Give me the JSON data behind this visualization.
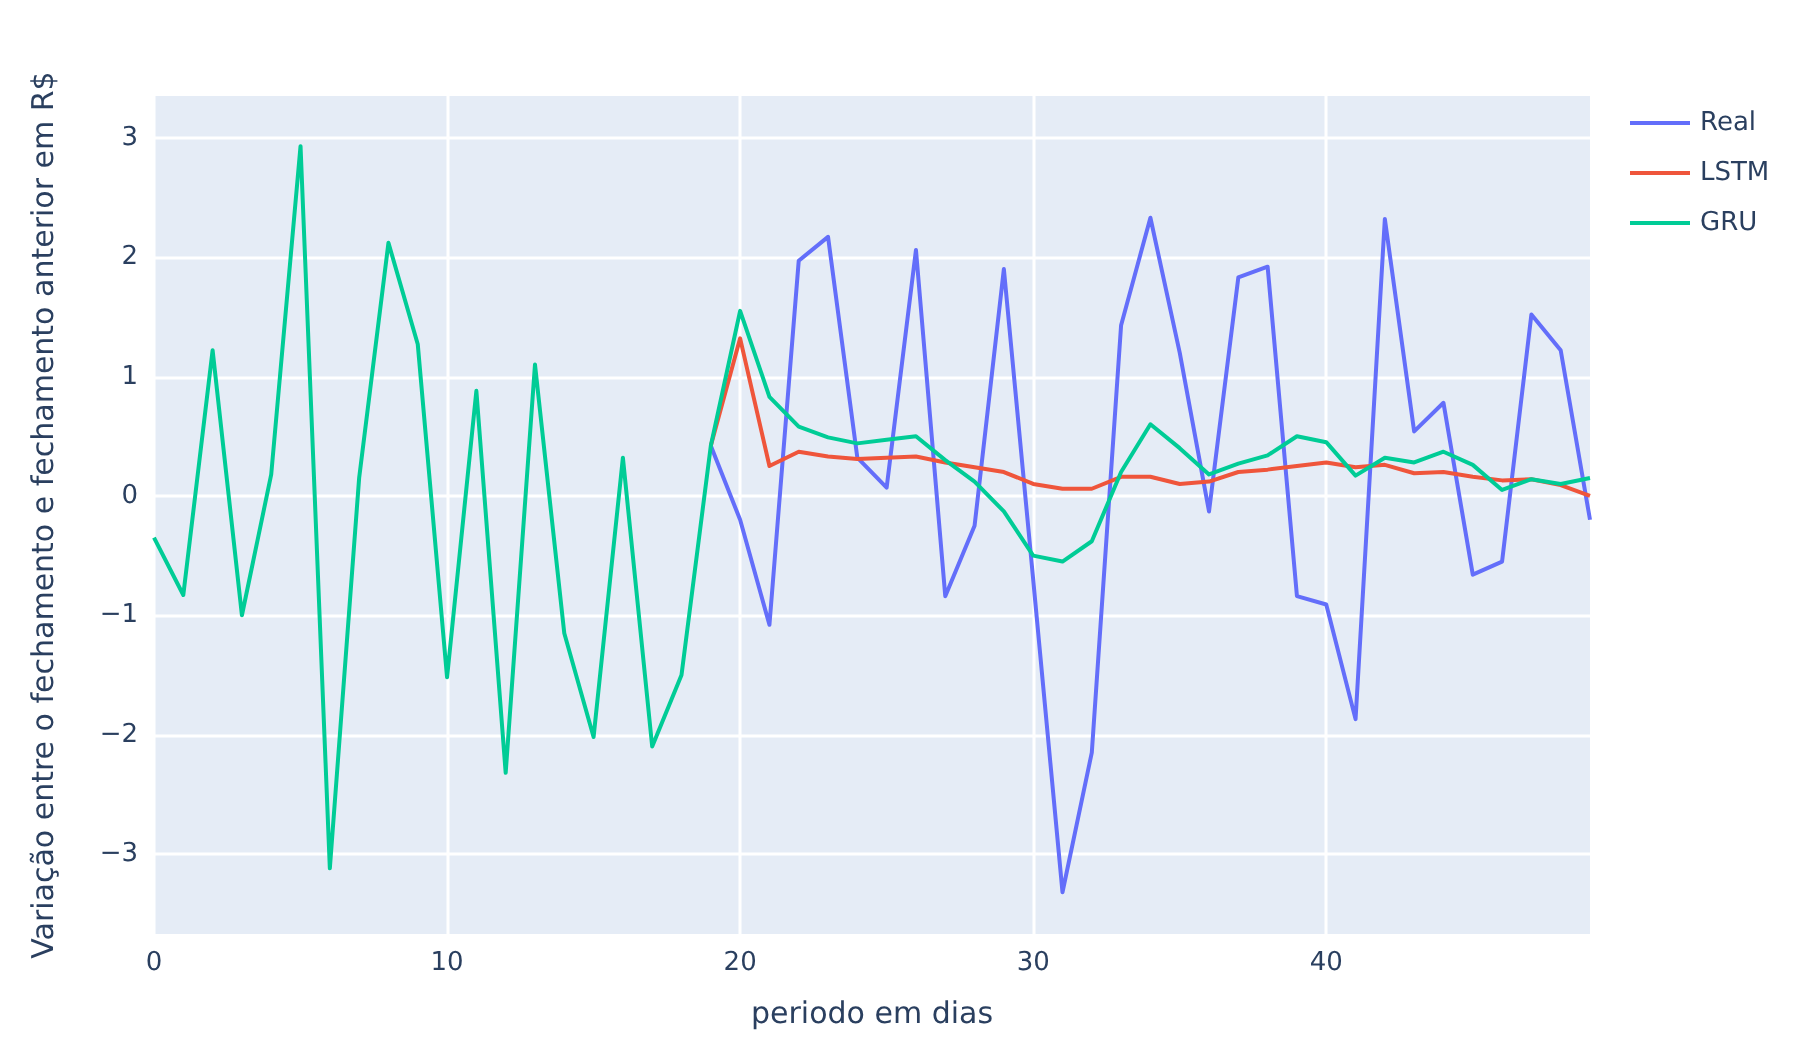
{
  "chart_data": {
    "type": "line",
    "xlabel": "periodo em dias",
    "ylabel": "Variação entre o fechamento e fechamento anterior em R$",
    "x": [
      0,
      1,
      2,
      3,
      4,
      5,
      6,
      7,
      8,
      9,
      10,
      11,
      12,
      13,
      14,
      15,
      16,
      17,
      18,
      19,
      20,
      21,
      22,
      23,
      24,
      25,
      26,
      27,
      28,
      29,
      30,
      31,
      32,
      33,
      34,
      35,
      36,
      37,
      38,
      39,
      40,
      41,
      42,
      43,
      44,
      45,
      46,
      47,
      48,
      49
    ],
    "series": [
      {
        "name": "Real",
        "color": "#636efa",
        "values": [
          null,
          null,
          null,
          null,
          null,
          null,
          null,
          null,
          null,
          null,
          null,
          null,
          null,
          null,
          null,
          null,
          null,
          null,
          null,
          0.42,
          -0.2,
          -1.08,
          1.97,
          2.17,
          0.32,
          0.07,
          2.06,
          -0.84,
          -0.25,
          1.9,
          -0.7,
          -3.32,
          -2.15,
          1.43,
          2.33,
          1.2,
          -0.13,
          1.83,
          1.92,
          -0.84,
          -0.91,
          -1.87,
          2.32,
          0.54,
          0.78,
          -0.66,
          -0.55,
          1.52,
          1.22,
          -0.2
        ]
      },
      {
        "name": "LSTM",
        "color": "#ef553b",
        "values": [
          null,
          null,
          null,
          null,
          null,
          null,
          null,
          null,
          null,
          null,
          null,
          null,
          null,
          null,
          null,
          null,
          null,
          null,
          null,
          0.42,
          1.32,
          0.25,
          0.37,
          0.33,
          0.31,
          0.32,
          0.33,
          0.28,
          0.24,
          0.2,
          0.1,
          0.06,
          0.06,
          0.16,
          0.16,
          0.1,
          0.12,
          0.2,
          0.22,
          0.25,
          0.28,
          0.24,
          0.26,
          0.19,
          0.2,
          0.16,
          0.13,
          0.14,
          0.09,
          0.0
        ]
      },
      {
        "name": "GRU",
        "color": "#00cc96",
        "values": [
          -0.35,
          -0.83,
          1.22,
          -1.0,
          0.18,
          2.93,
          -3.12,
          0.15,
          2.12,
          1.27,
          -1.52,
          0.88,
          -2.32,
          1.1,
          -1.15,
          -2.02,
          0.32,
          -2.1,
          -1.5,
          0.42,
          1.55,
          0.83,
          0.58,
          0.49,
          0.44,
          0.47,
          0.5,
          0.3,
          0.12,
          -0.13,
          -0.5,
          -0.55,
          -0.38,
          0.2,
          0.6,
          0.4,
          0.18,
          0.27,
          0.34,
          0.5,
          0.45,
          0.17,
          0.32,
          0.28,
          0.37,
          0.26,
          0.05,
          0.14,
          0.1,
          0.15
        ]
      }
    ],
    "xlim": [
      0,
      49
    ],
    "xticks": [
      0,
      10,
      20,
      30,
      40
    ],
    "ylim": [
      -3.67,
      3.35
    ],
    "yticks": [
      -3,
      -2,
      -1,
      0,
      1,
      2,
      3
    ],
    "grid": true,
    "legend": "top right",
    "marker": "none",
    "line_style": "solid"
  }
}
